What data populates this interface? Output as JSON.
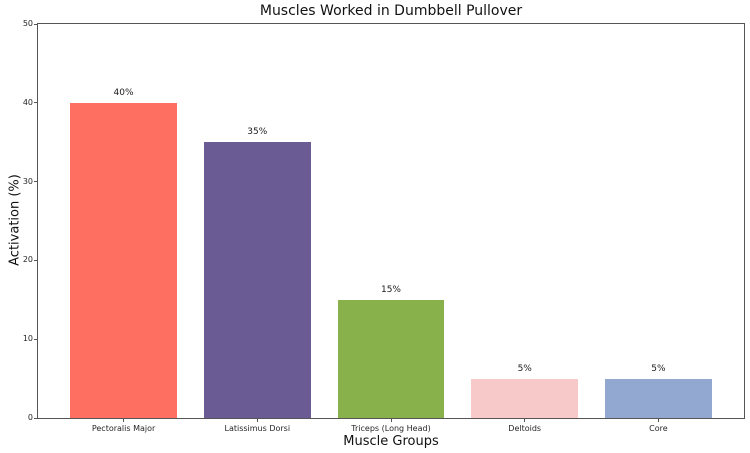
{
  "figure": {
    "background": "#ffffff",
    "spine_color": "#555555",
    "text_color": "#1a1a1a"
  },
  "chart_data": {
    "type": "bar",
    "title": "Muscles Worked in Dumbbell Pullover",
    "xlabel": "Muscle Groups",
    "ylabel": "Activation (%)",
    "categories": [
      "Pectoralis Major",
      "Latissimus Dorsi",
      "Triceps (Long Head)",
      "Deltoids",
      "Core"
    ],
    "values": [
      40,
      35,
      15,
      5,
      5
    ],
    "value_labels": [
      "40%",
      "35%",
      "15%",
      "5%",
      "5%"
    ],
    "bar_colors": [
      "#ff6f61",
      "#6b5b95",
      "#88b04b",
      "#f7cac9",
      "#92a8d1"
    ],
    "ylim": [
      0,
      50
    ],
    "yticks": [
      0,
      10,
      20,
      30,
      40,
      50
    ],
    "grid": false,
    "legend": "none"
  }
}
